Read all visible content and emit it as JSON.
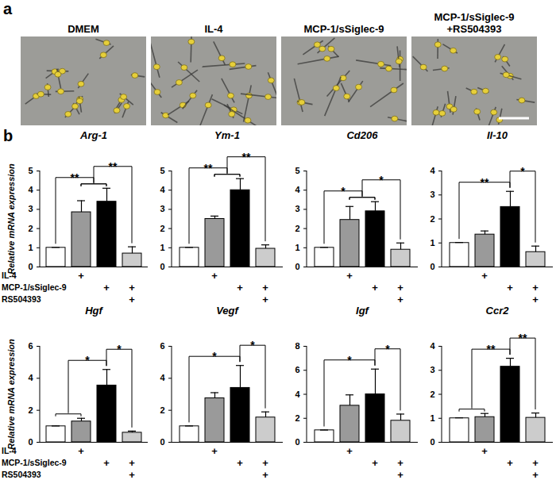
{
  "panel_a": {
    "label": "a",
    "images": [
      {
        "title": [
          "DMEM"
        ]
      },
      {
        "title": [
          "IL-4"
        ]
      },
      {
        "title": [
          "MCP-1/sSiglec-9"
        ]
      },
      {
        "title": [
          "MCP-1/sSiglec-9",
          "+RS504393"
        ]
      }
    ]
  },
  "panel_b_label": "b",
  "condition_table": [
    {
      "name": "IL-4",
      "marks": [
        null,
        "+",
        null,
        null
      ]
    },
    {
      "name": "MCP-1/sSiglec-9",
      "marks": [
        null,
        null,
        "+",
        "+"
      ]
    },
    {
      "name": "RS504393",
      "marks": [
        null,
        null,
        null,
        "+"
      ]
    }
  ],
  "chart_data": [
    {
      "type": "bar",
      "title": "Arg-1",
      "ylabel": "Relative mRNA expression",
      "categories": [
        null,
        null,
        null,
        null
      ],
      "values": [
        1,
        2.85,
        3.4,
        0.7
      ],
      "errors": [
        0.02,
        0.6,
        0.7,
        0.35
      ],
      "colors": [
        "#ffffff",
        "#9a9a9a",
        "#000000",
        "#cccccc"
      ],
      "ylim": [
        0,
        5
      ],
      "yticks": [
        0,
        1,
        2,
        3,
        4,
        5
      ],
      "tick_labels": "y",
      "significance": [
        {
          "left": [
            0
          ],
          "right": [
            1,
            2
          ],
          "label": "**"
        },
        {
          "left": [
            1,
            2
          ],
          "right": [
            3
          ],
          "label": "**"
        }
      ]
    },
    {
      "type": "bar",
      "title": "Ym-1",
      "categories": [
        null,
        null,
        null,
        null
      ],
      "values": [
        1,
        2.5,
        4.0,
        0.95
      ],
      "errors": [
        0.02,
        0.15,
        0.6,
        0.2
      ],
      "colors": [
        "#ffffff",
        "#9a9a9a",
        "#000000",
        "#cccccc"
      ],
      "ylim": [
        0,
        5
      ],
      "yticks": [
        0,
        1,
        2,
        3,
        4,
        5
      ],
      "tick_labels": "y",
      "significance": [
        {
          "left": [
            0
          ],
          "right": [
            1,
            2
          ],
          "label": "**"
        },
        {
          "left": [
            1,
            2
          ],
          "right": [
            3
          ],
          "label": "**"
        }
      ]
    },
    {
      "type": "bar",
      "title": "Cd206",
      "categories": [
        null,
        null,
        null,
        null
      ],
      "values": [
        1,
        2.45,
        2.9,
        0.9
      ],
      "errors": [
        0.02,
        0.7,
        0.5,
        0.35
      ],
      "colors": [
        "#ffffff",
        "#9a9a9a",
        "#000000",
        "#cccccc"
      ],
      "ylim": [
        0,
        5
      ],
      "yticks": [
        0,
        1,
        2,
        3,
        4,
        5
      ],
      "tick_labels": "y",
      "significance": [
        {
          "left": [
            0
          ],
          "right": [
            1,
            2
          ],
          "label": "*"
        },
        {
          "left": [
            1,
            2
          ],
          "right": [
            3
          ],
          "label": "*"
        }
      ]
    },
    {
      "type": "bar",
      "title": "Il-10",
      "categories": [
        null,
        null,
        null,
        null
      ],
      "values": [
        1,
        1.35,
        2.5,
        0.62
      ],
      "errors": [
        0.02,
        0.15,
        0.65,
        0.25
      ],
      "colors": [
        "#ffffff",
        "#9a9a9a",
        "#000000",
        "#cccccc"
      ],
      "ylim": [
        0,
        4
      ],
      "yticks": [
        0,
        1,
        2,
        3,
        4
      ],
      "tick_labels": "y",
      "significance": [
        {
          "left": [
            0
          ],
          "right": [
            2
          ],
          "label": "**"
        },
        {
          "left": [
            2
          ],
          "right": [
            3
          ],
          "label": "*"
        }
      ]
    },
    {
      "type": "bar",
      "title": "Hgf",
      "ylabel": "Relative mRNA expression",
      "categories": [
        null,
        null,
        null,
        null
      ],
      "values": [
        1,
        1.3,
        3.55,
        0.6
      ],
      "errors": [
        0.02,
        0.2,
        1.0,
        0.1
      ],
      "colors": [
        "#ffffff",
        "#9a9a9a",
        "#000000",
        "#cccccc"
      ],
      "ylim": [
        0,
        6
      ],
      "yticks": [
        0,
        2,
        4,
        6
      ],
      "tick_labels": "y",
      "significance": [
        {
          "left": [
            0,
            1
          ],
          "right": [
            2
          ],
          "label": "*"
        },
        {
          "left": [
            2
          ],
          "right": [
            3
          ],
          "label": "*"
        }
      ]
    },
    {
      "type": "bar",
      "title": "Vegf",
      "categories": [
        null,
        null,
        null,
        null
      ],
      "values": [
        1,
        2.75,
        3.4,
        1.55
      ],
      "errors": [
        0.02,
        0.35,
        1.4,
        0.35
      ],
      "colors": [
        "#ffffff",
        "#9a9a9a",
        "#000000",
        "#cccccc"
      ],
      "ylim": [
        0,
        6
      ],
      "yticks": [
        0,
        2,
        4,
        6
      ],
      "tick_labels": "y",
      "significance": [
        {
          "left": [
            0
          ],
          "right": [
            2
          ],
          "label": "*"
        },
        {
          "left": [
            2
          ],
          "right": [
            3
          ],
          "label": "*"
        }
      ]
    },
    {
      "type": "bar",
      "title": "Igf",
      "categories": [
        null,
        null,
        null,
        null
      ],
      "values": [
        1,
        3.05,
        4.0,
        1.8
      ],
      "errors": [
        0.02,
        0.9,
        2.1,
        0.55
      ],
      "colors": [
        "#ffffff",
        "#9a9a9a",
        "#000000",
        "#cccccc"
      ],
      "ylim": [
        0,
        8
      ],
      "yticks": [
        0,
        2,
        4,
        6,
        8
      ],
      "tick_labels": "y",
      "significance": [
        {
          "left": [
            0
          ],
          "right": [
            2
          ],
          "label": "*"
        },
        {
          "left": [
            2
          ],
          "right": [
            3
          ],
          "label": "*"
        }
      ]
    },
    {
      "type": "bar",
      "title": "Ccr2",
      "categories": [
        null,
        null,
        null,
        null
      ],
      "values": [
        1,
        1.05,
        3.15,
        1.02
      ],
      "errors": [
        0.02,
        0.15,
        0.35,
        0.2
      ],
      "colors": [
        "#ffffff",
        "#9a9a9a",
        "#000000",
        "#cccccc"
      ],
      "ylim": [
        0,
        4
      ],
      "yticks": [
        0,
        1,
        2,
        3,
        4
      ],
      "tick_labels": "y",
      "significance": [
        {
          "left": [
            0,
            1
          ],
          "right": [
            2
          ],
          "label": "**"
        },
        {
          "left": [
            2
          ],
          "right": [
            3
          ],
          "label": "**"
        }
      ]
    }
  ]
}
